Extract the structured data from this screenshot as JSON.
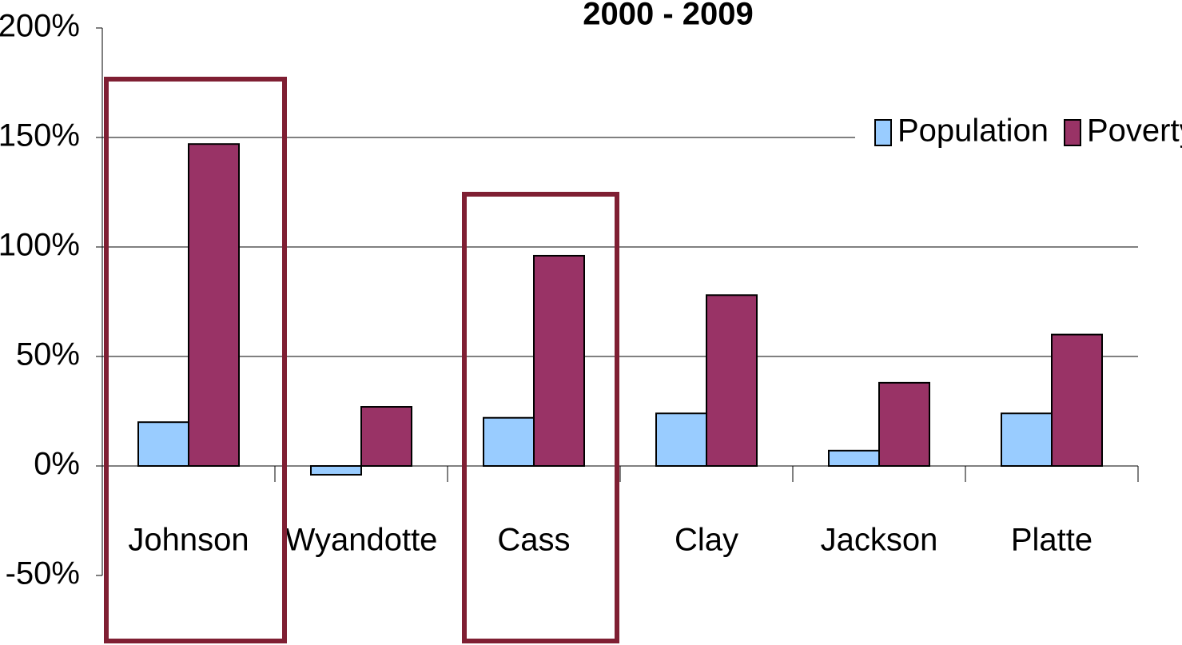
{
  "chart_data": {
    "type": "bar",
    "title": "2000 - 2009",
    "categories": [
      "Johnson",
      "Wyandotte",
      "Cass",
      "Clay",
      "Jackson",
      "Platte"
    ],
    "series": [
      {
        "name": "Population",
        "color": "#99ccff",
        "values": [
          20,
          -4,
          22,
          24,
          7,
          24
        ]
      },
      {
        "name": "Poverty",
        "color": "#993366",
        "values": [
          147,
          27,
          96,
          78,
          38,
          60
        ]
      }
    ],
    "ylim": [
      -50,
      200
    ],
    "yticks": [
      {
        "value": -50,
        "label": "-50%"
      },
      {
        "value": 0,
        "label": "0%"
      },
      {
        "value": 50,
        "label": "50%"
      },
      {
        "value": 100,
        "label": "100%"
      },
      {
        "value": 150,
        "label": "150%"
      },
      {
        "value": 200,
        "label": "200%"
      }
    ],
    "grid": true,
    "legend": "top-right"
  }
}
